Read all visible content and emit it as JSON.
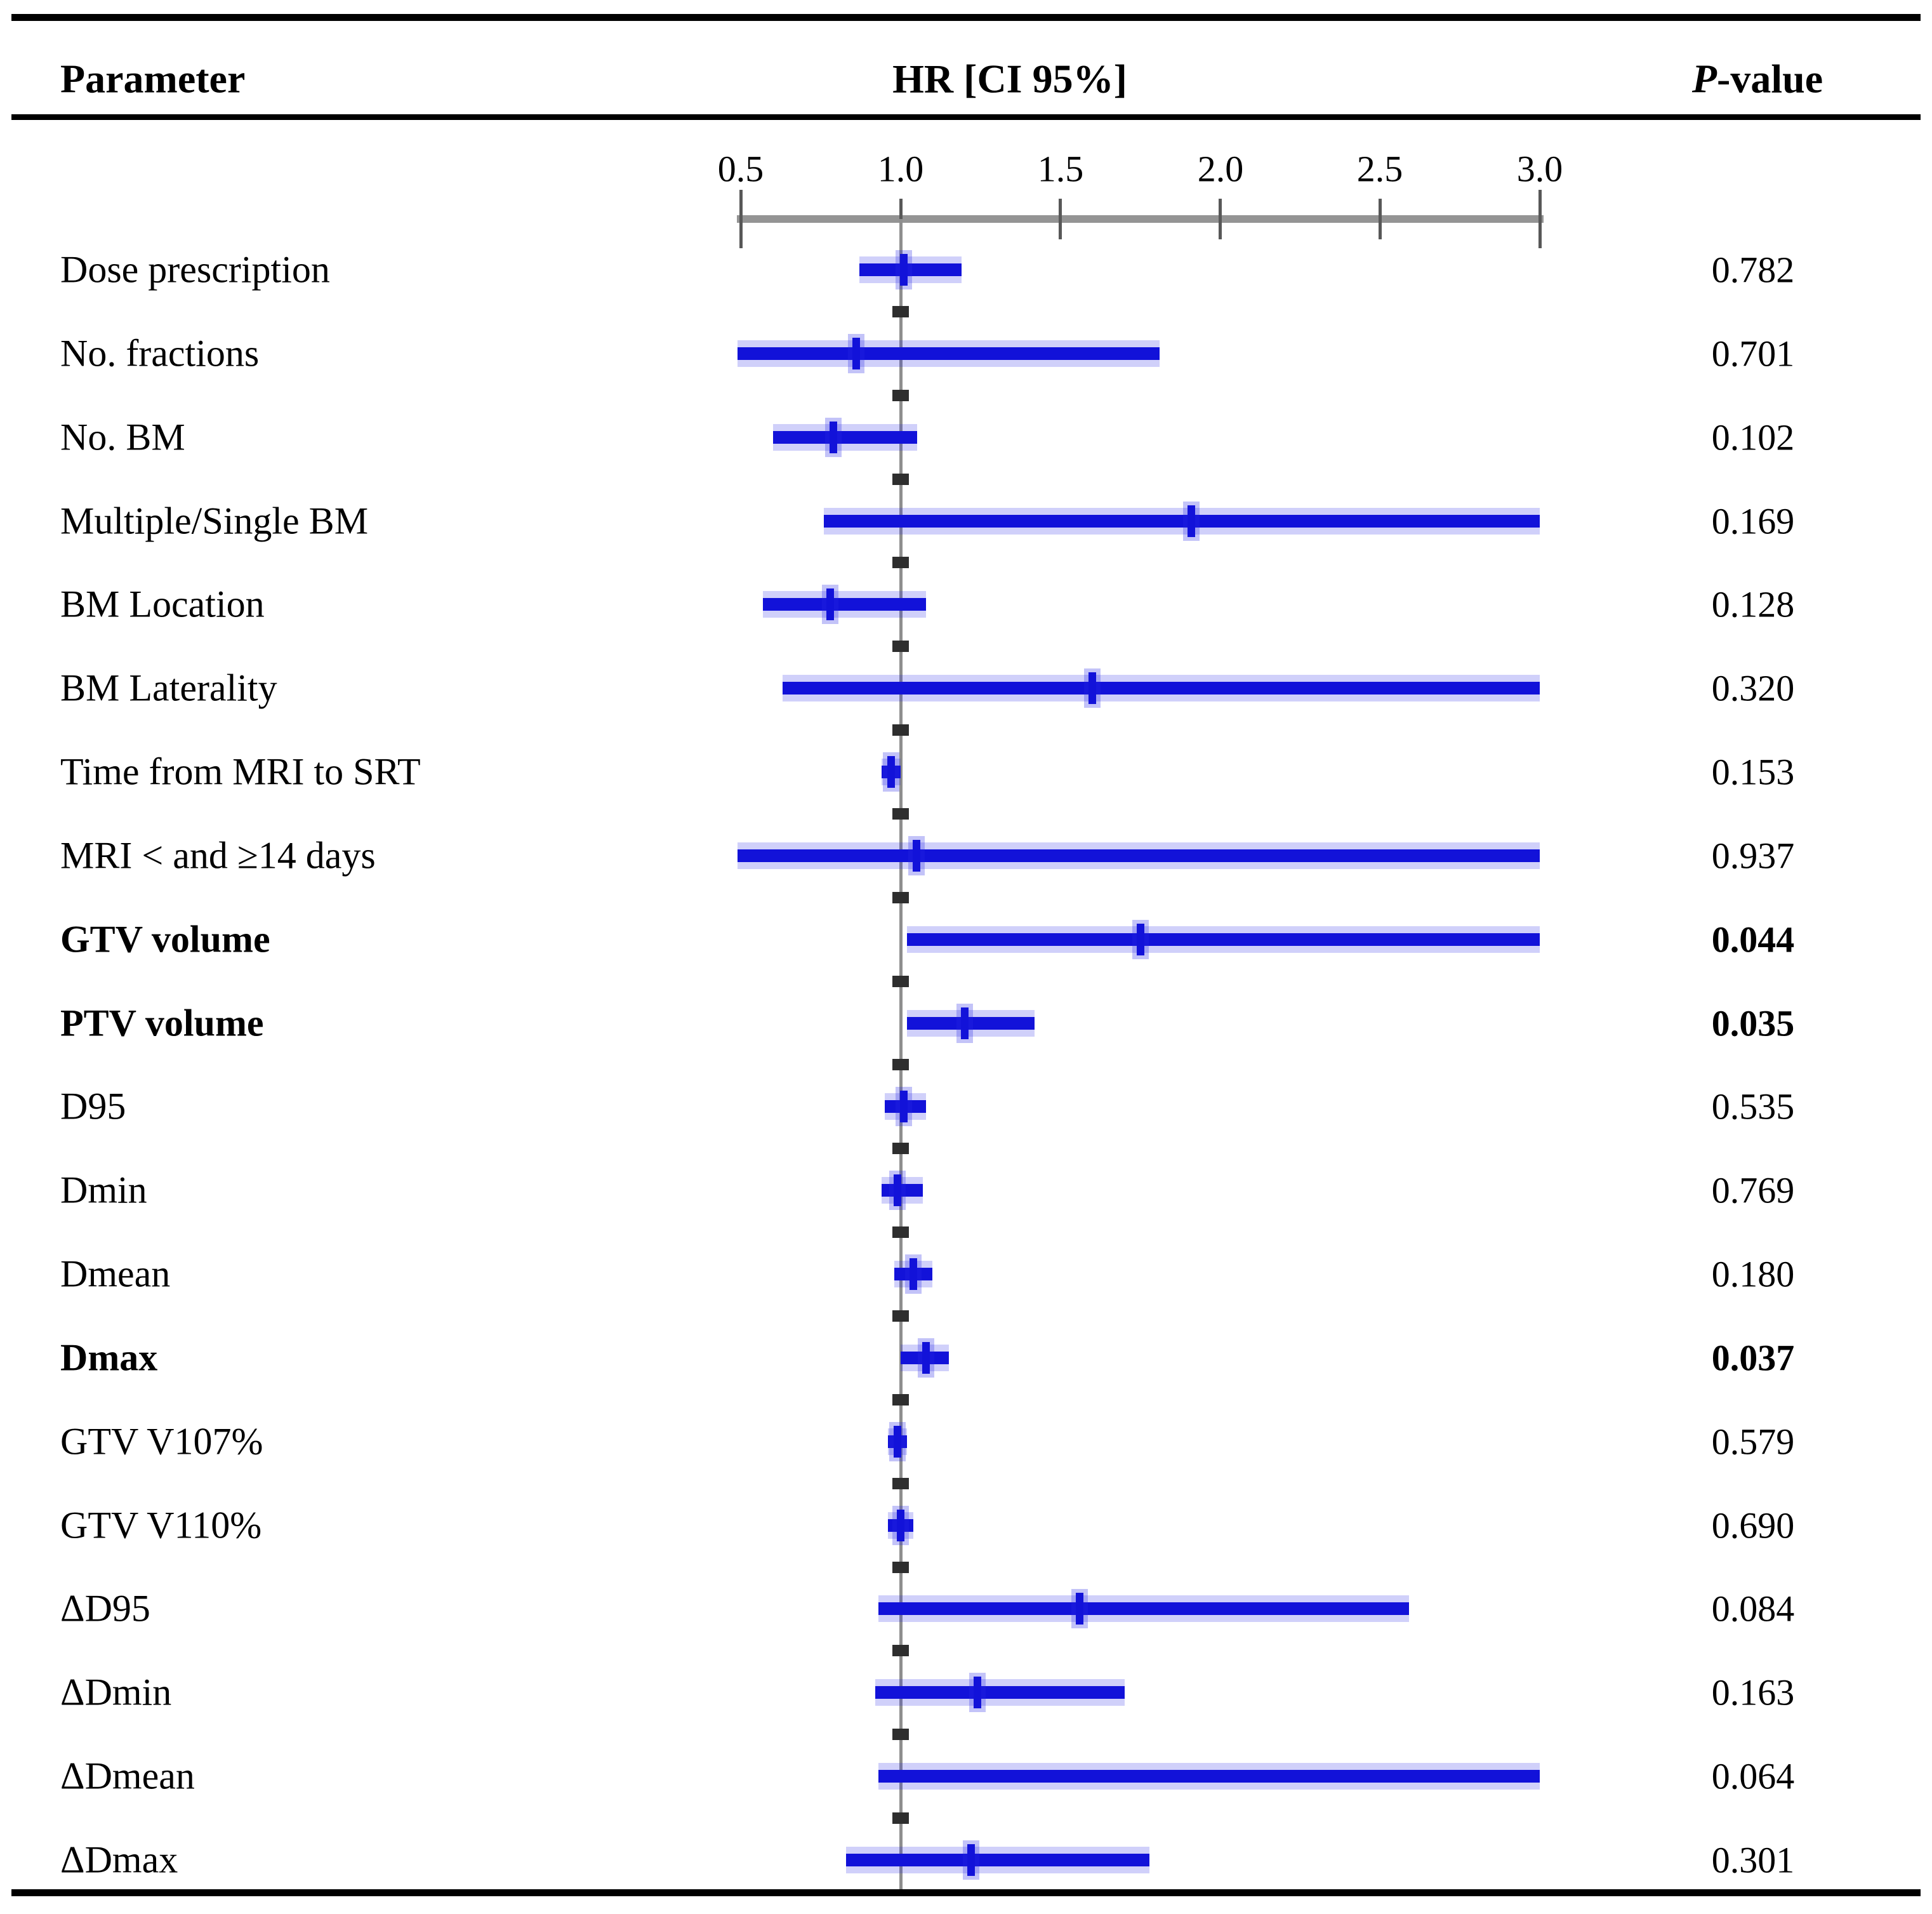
{
  "header": {
    "parameter": "Parameter",
    "hr_ci": "HR [CI 95%]",
    "pvalue_italic": "P",
    "pvalue_rest": "-value"
  },
  "chart_data": {
    "type": "forest-plot",
    "title": "Hazard ratios with 95% confidence intervals and p-values per parameter",
    "columns": [
      "Parameter",
      "HR [CI 95%]",
      "P-value"
    ],
    "x_axis": {
      "label": "HR",
      "ticks": [
        0.5,
        1.0,
        1.5,
        2.0,
        2.5,
        3.0
      ],
      "range": [
        0.5,
        3.0
      ],
      "reference_line": 1.0
    },
    "marker_color": "#1212d9",
    "rows": [
      {
        "parameter": "Dose prescription",
        "hr": 1.01,
        "ci_low": 0.87,
        "ci_high": 1.19,
        "ci_high_truncated": false,
        "p_value": "0.782",
        "bold": false
      },
      {
        "parameter": "No. fractions",
        "hr": 0.86,
        "ci_low": 0.49,
        "ci_high": 1.81,
        "ci_high_truncated": false,
        "p_value": "0.701",
        "bold": false
      },
      {
        "parameter": "No. BM",
        "hr": 0.79,
        "ci_low": 0.6,
        "ci_high": 1.05,
        "ci_high_truncated": false,
        "p_value": "0.102",
        "bold": false
      },
      {
        "parameter": "Multiple/Single BM",
        "hr": 1.91,
        "ci_low": 0.76,
        "ci_high": 3.0,
        "ci_high_truncated": true,
        "p_value": "0.169",
        "bold": false
      },
      {
        "parameter": "BM Location",
        "hr": 0.78,
        "ci_low": 0.57,
        "ci_high": 1.08,
        "ci_high_truncated": false,
        "p_value": "0.128",
        "bold": false
      },
      {
        "parameter": "BM Laterality",
        "hr": 1.6,
        "ci_low": 0.63,
        "ci_high": 3.0,
        "ci_high_truncated": true,
        "p_value": "0.320",
        "bold": false
      },
      {
        "parameter": "Time from MRI to SRT",
        "hr": 0.97,
        "ci_low": 0.94,
        "ci_high": 1.0,
        "ci_high_truncated": false,
        "p_value": "0.153",
        "bold": false
      },
      {
        "parameter": "MRI < and ≥14 days",
        "hr": 1.05,
        "ci_low": 0.49,
        "ci_high": 3.0,
        "ci_high_truncated": true,
        "p_value": "0.937",
        "bold": false
      },
      {
        "parameter": "GTV volume",
        "hr": 1.75,
        "ci_low": 1.02,
        "ci_high": 3.0,
        "ci_high_truncated": true,
        "p_value": "0.044",
        "bold": true
      },
      {
        "parameter": "PTV volume",
        "hr": 1.2,
        "ci_low": 1.02,
        "ci_high": 1.42,
        "ci_high_truncated": false,
        "p_value": "0.035",
        "bold": true
      },
      {
        "parameter": "D95",
        "hr": 1.01,
        "ci_low": 0.95,
        "ci_high": 1.08,
        "ci_high_truncated": false,
        "p_value": "0.535",
        "bold": false
      },
      {
        "parameter": "Dmin",
        "hr": 0.99,
        "ci_low": 0.94,
        "ci_high": 1.07,
        "ci_high_truncated": false,
        "p_value": "0.769",
        "bold": false
      },
      {
        "parameter": "Dmean",
        "hr": 1.04,
        "ci_low": 0.98,
        "ci_high": 1.1,
        "ci_high_truncated": false,
        "p_value": "0.180",
        "bold": false
      },
      {
        "parameter": "Dmax",
        "hr": 1.08,
        "ci_low": 1.0,
        "ci_high": 1.15,
        "ci_high_truncated": false,
        "p_value": "0.037",
        "bold": true
      },
      {
        "parameter": "GTV V107%",
        "hr": 0.99,
        "ci_low": 0.96,
        "ci_high": 1.02,
        "ci_high_truncated": false,
        "p_value": "0.579",
        "bold": false
      },
      {
        "parameter": "GTV V110%",
        "hr": 1.0,
        "ci_low": 0.96,
        "ci_high": 1.04,
        "ci_high_truncated": false,
        "p_value": "0.690",
        "bold": false
      },
      {
        "parameter": "ΔD95",
        "hr": 1.56,
        "ci_low": 0.93,
        "ci_high": 2.59,
        "ci_high_truncated": false,
        "p_value": "0.084",
        "bold": false
      },
      {
        "parameter": "ΔDmin",
        "hr": 1.24,
        "ci_low": 0.92,
        "ci_high": 1.7,
        "ci_high_truncated": false,
        "p_value": "0.163",
        "bold": false
      },
      {
        "parameter": "ΔDmean",
        "hr": null,
        "ci_low": 0.93,
        "ci_high": 3.0,
        "ci_high_truncated": true,
        "p_value": "0.064",
        "bold": false
      },
      {
        "parameter": "ΔDmax",
        "hr": 1.22,
        "ci_low": 0.83,
        "ci_high": 1.78,
        "ci_high_truncated": false,
        "p_value": "0.301",
        "bold": false
      }
    ]
  }
}
